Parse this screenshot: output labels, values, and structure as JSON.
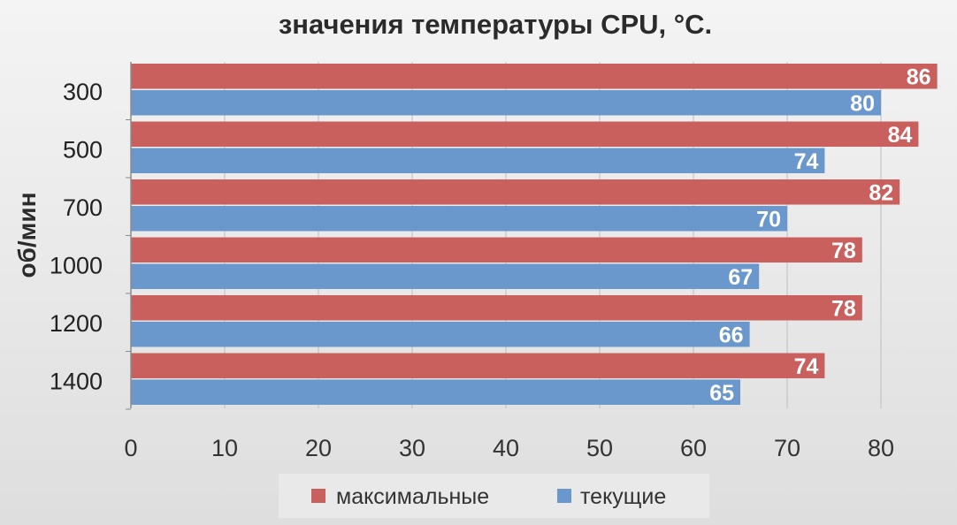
{
  "chart_data": {
    "type": "bar",
    "orientation": "horizontal",
    "title": "значения температуры CPU, °C.",
    "ylabel": "об/мин",
    "xlabel": "",
    "categories": [
      "300",
      "500",
      "700",
      "1000",
      "1200",
      "1400"
    ],
    "series": [
      {
        "name": "максимальные",
        "color": "#c9605d",
        "values": [
          86,
          84,
          82,
          78,
          78,
          74
        ]
      },
      {
        "name": "текущие",
        "color": "#6b98cc",
        "values": [
          80,
          74,
          70,
          67,
          66,
          65
        ]
      }
    ],
    "xlim": [
      0,
      86
    ],
    "xticks": [
      0,
      10,
      20,
      30,
      40,
      50,
      60,
      70,
      80
    ],
    "grid": true,
    "legend": "bottom",
    "data_labels": true
  }
}
